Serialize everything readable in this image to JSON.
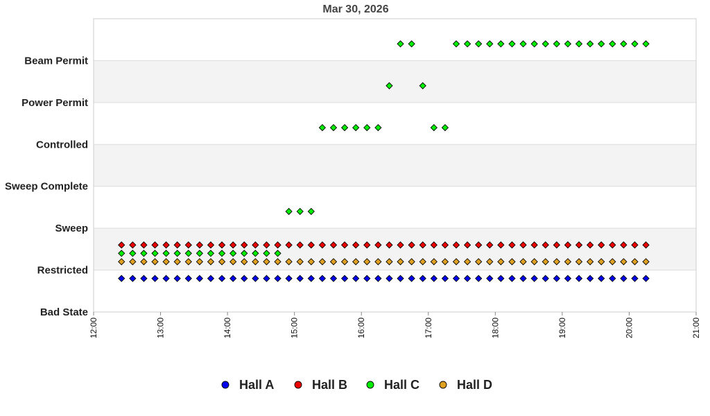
{
  "chart_data": {
    "type": "scatter",
    "title": "Mar 30, 2026",
    "xlabel": "",
    "ylabel": "",
    "x_ticks": [
      "12:00",
      "13:00",
      "14:00",
      "15:00",
      "16:00",
      "17:00",
      "18:00",
      "19:00",
      "20:00",
      "21:00"
    ],
    "xlim": [
      "12:00",
      "21:00"
    ],
    "y_categories": [
      "Bad State",
      "Restricted",
      "Sweep",
      "Sweep Complete",
      "Controlled",
      "Power Permit",
      "Beam Permit"
    ],
    "sample_interval_min": 10,
    "grid": "alternating horizontal bands",
    "legend_position": "bottom",
    "colors": {
      "Hall A": "#0000ee",
      "Hall B": "#ee0000",
      "Hall C": "#00ee00",
      "Hall D": "#e0a020",
      "band": "#f3f3f3",
      "grid": "#dddddd"
    },
    "series": [
      {
        "name": "Hall A",
        "segments": [
          {
            "state": "Restricted",
            "level": 0.8,
            "start": "12:25",
            "end": "20:15"
          }
        ]
      },
      {
        "name": "Hall B",
        "segments": [
          {
            "state": "Restricted",
            "level": 1.6,
            "start": "12:25",
            "end": "20:15"
          }
        ]
      },
      {
        "name": "Hall C",
        "segments": [
          {
            "state": "Restricted",
            "level": 1.4,
            "start": "12:25",
            "end": "14:45"
          },
          {
            "state": "Sweep",
            "level": 2.4,
            "start": "14:55",
            "end": "15:15"
          },
          {
            "state": "Controlled",
            "level": 4.4,
            "start": "15:25",
            "end": "16:15"
          },
          {
            "state": "Beam Permit",
            "level": 6.4,
            "start": "16:35",
            "end": "16:45"
          },
          {
            "state": "Power Permit",
            "level": 5.4,
            "start": "16:25",
            "end": "16:25"
          },
          {
            "state": "Power Permit",
            "level": 5.4,
            "start": "16:55",
            "end": "16:55"
          },
          {
            "state": "Controlled",
            "level": 4.4,
            "start": "17:05",
            "end": "17:15"
          },
          {
            "state": "Beam Permit",
            "level": 6.4,
            "start": "17:25",
            "end": "20:15"
          }
        ]
      },
      {
        "name": "Hall D",
        "segments": [
          {
            "state": "Restricted",
            "level": 1.2,
            "start": "12:25",
            "end": "20:15"
          }
        ]
      }
    ]
  }
}
